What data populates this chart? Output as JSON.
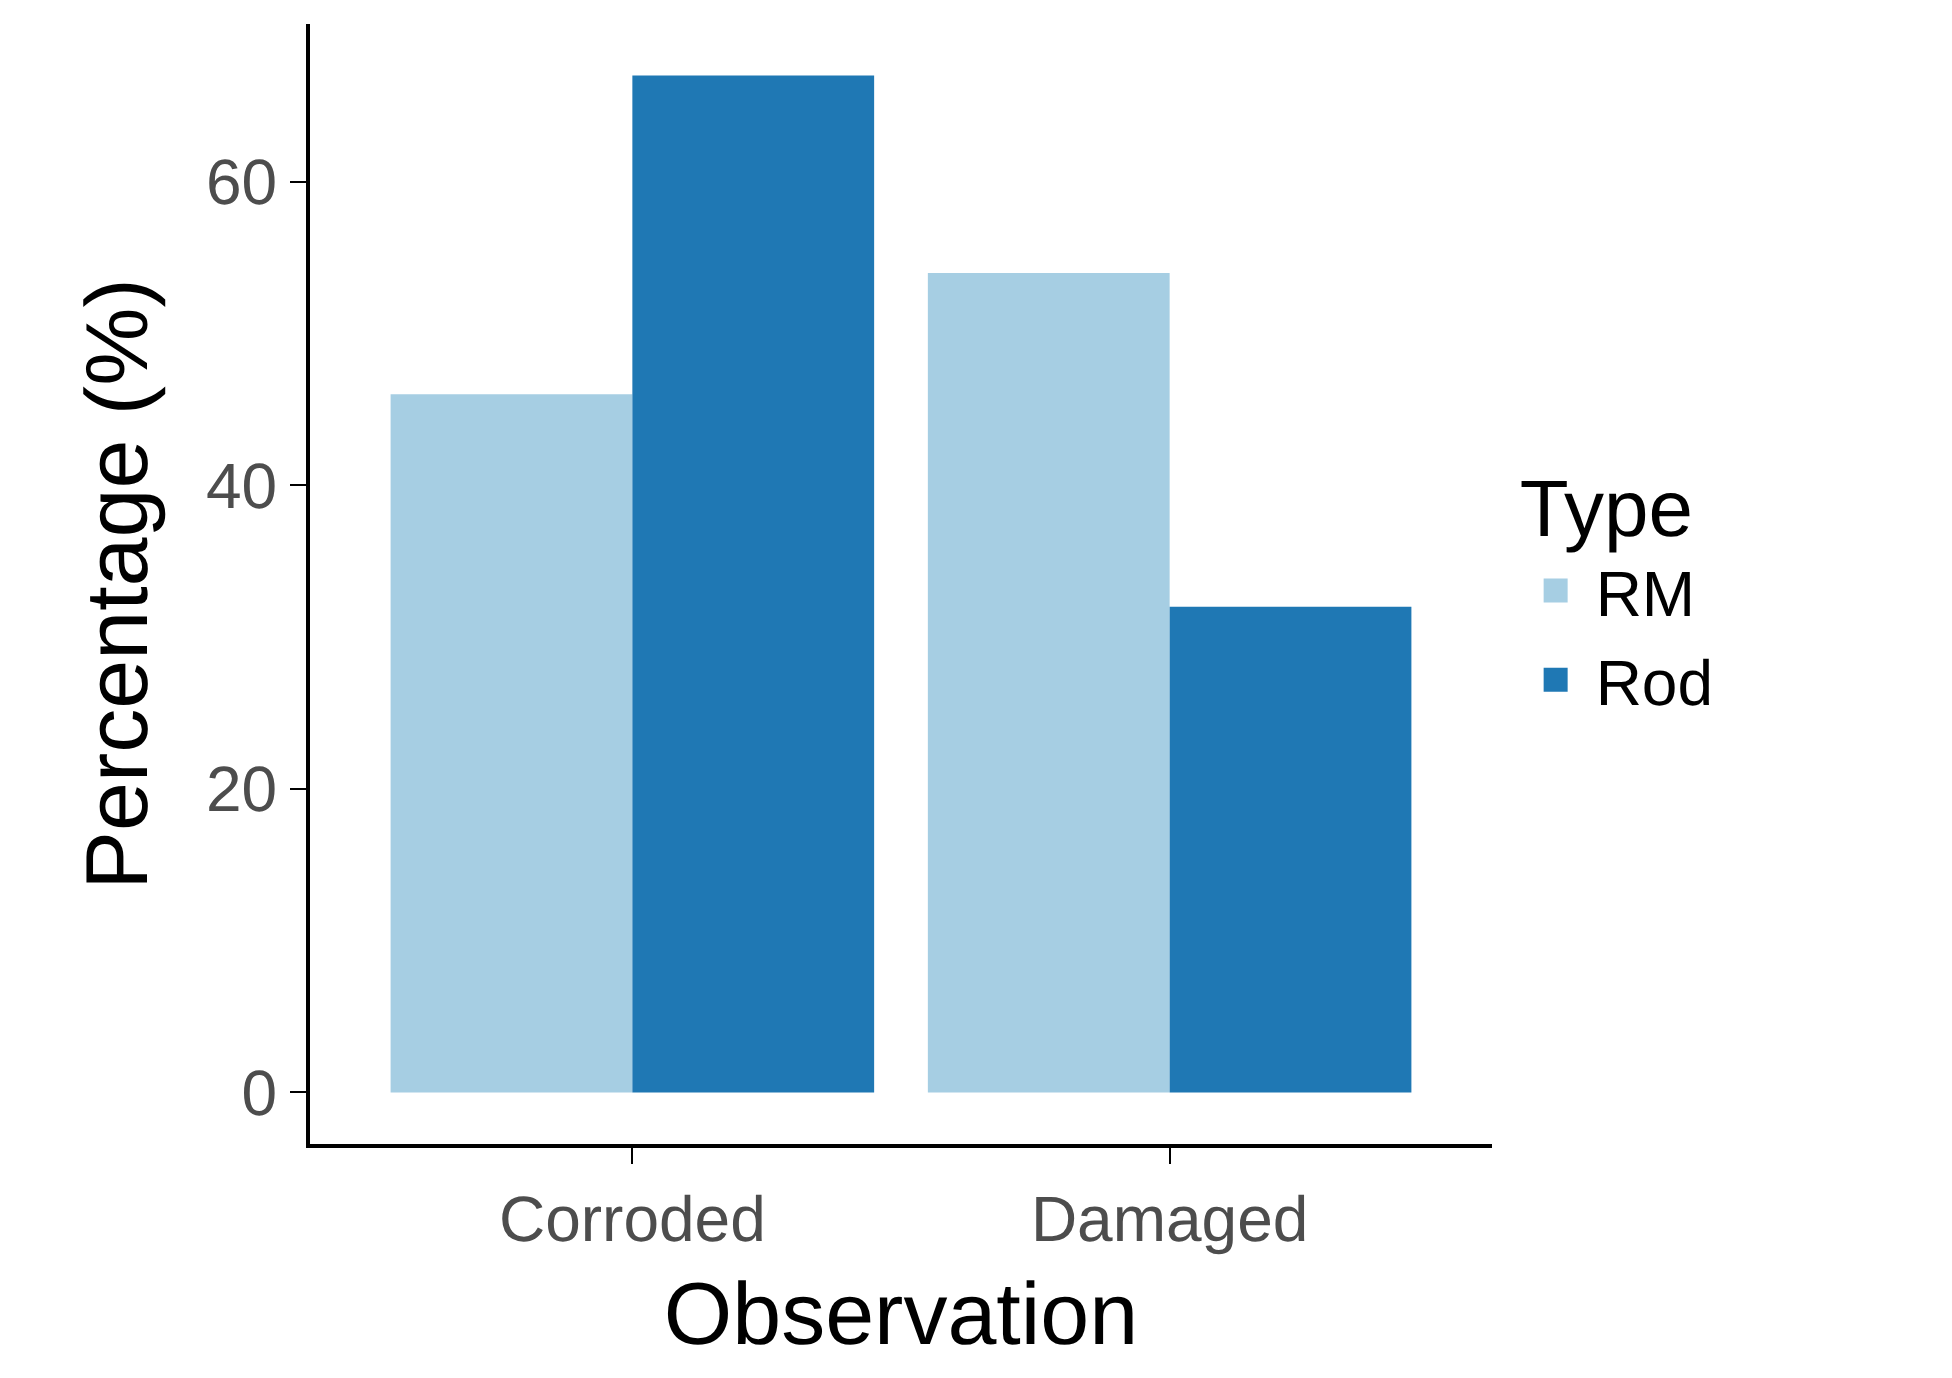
{
  "chart_data": {
    "type": "bar",
    "xlabel": "Observation",
    "ylabel": "Percentage (%)",
    "legend_title": "Type",
    "categories": [
      "Corroded",
      "Damaged"
    ],
    "series": [
      {
        "name": "RM",
        "color": "#a6cee3",
        "values": [
          46,
          54
        ]
      },
      {
        "name": "Rod",
        "color": "#1f78b4",
        "values": [
          67,
          32
        ]
      }
    ],
    "ylim": [
      -3.4,
      70.4
    ],
    "yticks": [
      0,
      20,
      40,
      60
    ],
    "legend": "right"
  }
}
